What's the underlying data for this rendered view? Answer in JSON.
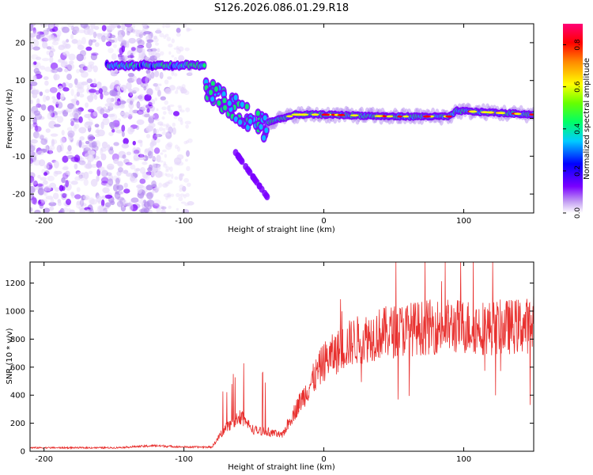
{
  "title": "S126.2026.086.01.29.R18",
  "chart_data": [
    {
      "type": "heatmap",
      "xlabel": "Height of straight line (km)",
      "ylabel": "Frequency (Hz)",
      "xlim": [
        -210,
        150
      ],
      "ylim": [
        -25,
        25
      ],
      "xticks": [
        -200,
        -100,
        0,
        100
      ],
      "yticks": [
        -20,
        -10,
        0,
        10,
        20
      ],
      "colorbar": {
        "label": "Normalized spectral amplitude",
        "range": [
          0.0,
          0.9
        ],
        "ticks": [
          "0.0",
          "0.2",
          "0.4",
          "0.6",
          "0.8"
        ]
      },
      "features": [
        {
          "name": "noise",
          "x_range": [
            -210,
            -95
          ],
          "y_range": [
            -25,
            25
          ]
        },
        {
          "name": "band",
          "x": [
            -155,
            -85
          ],
          "y": [
            14,
            14
          ]
        },
        {
          "name": "descending-track",
          "x": [
            -85,
            -40
          ],
          "y": [
            8,
            -3
          ]
        },
        {
          "name": "descending-tail",
          "x": [
            -65,
            -40
          ],
          "y": [
            -8,
            -21
          ]
        },
        {
          "name": "trace",
          "x": [
            -40,
            -20,
            0,
            50,
            90,
            95,
            150
          ],
          "y": [
            -1,
            1,
            1,
            0.5,
            0.5,
            2,
            1
          ]
        }
      ]
    },
    {
      "type": "line",
      "xlabel": "Height of straight line (km)",
      "ylabel": "SNR (10 * v/v)",
      "xlim": [
        -210,
        150
      ],
      "ylim": [
        0,
        1350
      ],
      "xticks": [
        -200,
        -100,
        0,
        100
      ],
      "yticks": [
        0,
        200,
        400,
        600,
        800,
        1000,
        1200
      ],
      "color": "#e8312f",
      "x": [
        -210,
        -180,
        -150,
        -120,
        -100,
        -80,
        -70,
        -60,
        -50,
        -40,
        -30,
        -20,
        -10,
        0,
        20,
        40,
        60,
        80,
        100,
        120,
        150
      ],
      "y": [
        25,
        25,
        25,
        40,
        30,
        30,
        170,
        250,
        150,
        140,
        110,
        300,
        470,
        640,
        780,
        840,
        870,
        890,
        890,
        880,
        900
      ]
    }
  ]
}
